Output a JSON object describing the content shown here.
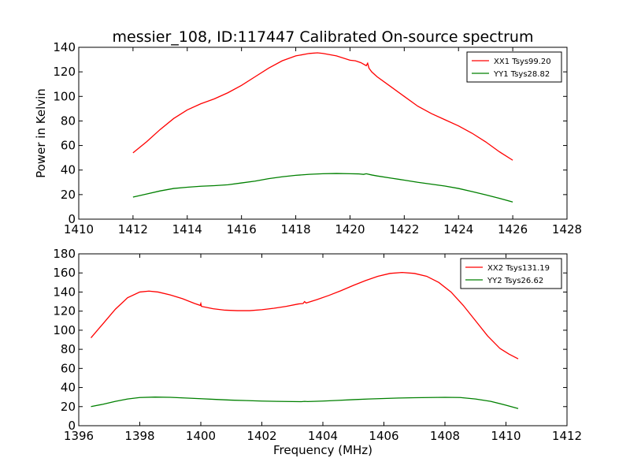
{
  "title": "messier_108, ID:117447 Calibrated On-source spectrum",
  "colors": {
    "xx": "#ff0000",
    "yy": "#008000",
    "frame": "#000000",
    "background": "#ffffff"
  },
  "chart_data": [
    {
      "type": "line",
      "title": "messier_108, ID:117447 Calibrated On-source spectrum",
      "xlabel": "",
      "ylabel": "Power in Kelvin",
      "xlim": [
        1410,
        1428
      ],
      "ylim": [
        0,
        140
      ],
      "xticks": [
        1410,
        1412,
        1414,
        1416,
        1418,
        1420,
        1422,
        1424,
        1426,
        1428
      ],
      "yticks": [
        0,
        20,
        40,
        60,
        80,
        100,
        120,
        140
      ],
      "grid": false,
      "legend_position": "top-right",
      "series": [
        {
          "name": "XX1 Tsys99.20",
          "color": "#ff0000",
          "x": [
            1412.0,
            1412.5,
            1413.0,
            1413.5,
            1414.0,
            1414.5,
            1415.0,
            1415.5,
            1416.0,
            1416.5,
            1417.0,
            1417.5,
            1418.0,
            1418.5,
            1418.8,
            1419.0,
            1419.5,
            1420.0,
            1420.2,
            1420.4,
            1420.6,
            1420.65,
            1420.7,
            1420.8,
            1421.0,
            1421.5,
            1422.0,
            1422.5,
            1423.0,
            1423.5,
            1424.0,
            1424.5,
            1425.0,
            1425.5,
            1426.0
          ],
          "y": [
            54,
            63,
            73,
            82,
            89,
            94,
            98,
            103,
            109,
            116,
            123,
            129,
            133,
            135,
            135.5,
            135,
            133,
            129.5,
            129,
            127.5,
            125,
            127,
            123,
            120,
            116,
            108,
            100,
            92,
            86,
            81,
            76,
            70,
            63,
            55,
            48
          ]
        },
        {
          "name": "YY1 Tsys28.82",
          "color": "#008000",
          "x": [
            1412.0,
            1412.5,
            1413.0,
            1413.5,
            1414.0,
            1414.5,
            1415.0,
            1415.5,
            1416.0,
            1416.5,
            1417.0,
            1417.5,
            1418.0,
            1418.5,
            1419.0,
            1419.5,
            1420.0,
            1420.3,
            1420.5,
            1420.6,
            1420.8,
            1421.0,
            1421.5,
            1422.0,
            1422.5,
            1423.0,
            1423.5,
            1424.0,
            1424.5,
            1425.0,
            1425.5,
            1426.0
          ],
          "y": [
            18,
            20.5,
            23,
            25,
            26,
            26.8,
            27.3,
            28,
            29.5,
            31,
            33,
            34.5,
            35.7,
            36.5,
            37,
            37.2,
            37,
            36.9,
            36.5,
            37,
            36,
            35.2,
            33.5,
            31.8,
            30,
            28.5,
            27,
            25,
            22.5,
            19.8,
            17,
            14
          ]
        }
      ]
    },
    {
      "type": "line",
      "title": "",
      "xlabel": "Frequency (MHz)",
      "ylabel": "",
      "xlim": [
        1396,
        1412
      ],
      "ylim": [
        0,
        180
      ],
      "xticks": [
        1396,
        1398,
        1400,
        1402,
        1404,
        1406,
        1408,
        1410,
        1412
      ],
      "yticks": [
        0,
        20,
        40,
        60,
        80,
        100,
        120,
        140,
        160,
        180
      ],
      "grid": false,
      "legend_position": "top-right",
      "series": [
        {
          "name": "XX2 Tsys131.19",
          "color": "#ff0000",
          "x": [
            1396.4,
            1396.8,
            1397.2,
            1397.6,
            1398.0,
            1398.3,
            1398.6,
            1399.0,
            1399.4,
            1399.8,
            1399.98,
            1400.0,
            1400.02,
            1400.4,
            1400.8,
            1401.2,
            1401.6,
            1402.0,
            1402.4,
            1402.8,
            1403.2,
            1403.35,
            1403.4,
            1403.45,
            1403.8,
            1404.2,
            1404.6,
            1405.0,
            1405.4,
            1405.8,
            1406.2,
            1406.6,
            1407.0,
            1407.4,
            1407.8,
            1408.2,
            1408.6,
            1409.0,
            1409.4,
            1409.8,
            1410.1,
            1410.4
          ],
          "y": [
            92,
            107,
            122,
            134,
            140,
            141,
            140,
            137,
            133,
            128,
            126,
            128,
            125,
            122.5,
            121,
            120.5,
            120.5,
            121.5,
            123,
            125,
            127.5,
            128,
            130,
            128.5,
            132,
            136.5,
            141.5,
            147,
            152,
            156.5,
            159.5,
            160.5,
            159.5,
            156.5,
            150,
            140,
            126,
            110,
            94,
            81,
            75,
            70
          ]
        },
        {
          "name": "YY2 Tsys26.62",
          "color": "#008000",
          "x": [
            1396.4,
            1396.8,
            1397.2,
            1397.6,
            1398.0,
            1398.5,
            1399.0,
            1399.5,
            1400.0,
            1400.5,
            1401.0,
            1401.5,
            1402.0,
            1402.5,
            1403.0,
            1403.3,
            1403.4,
            1403.5,
            1404.0,
            1404.5,
            1405.0,
            1405.5,
            1406.0,
            1406.5,
            1407.0,
            1407.5,
            1408.0,
            1408.5,
            1409.0,
            1409.5,
            1410.0,
            1410.4
          ],
          "y": [
            20,
            22.5,
            25.5,
            28,
            29.5,
            30,
            29.7,
            29,
            28.3,
            27.5,
            26.8,
            26.3,
            25.8,
            25.5,
            25.3,
            25.2,
            25.5,
            25.3,
            25.8,
            26.5,
            27.3,
            28,
            28.5,
            29,
            29.3,
            29.5,
            29.7,
            29.5,
            28,
            25.5,
            21.5,
            18
          ]
        }
      ]
    }
  ]
}
